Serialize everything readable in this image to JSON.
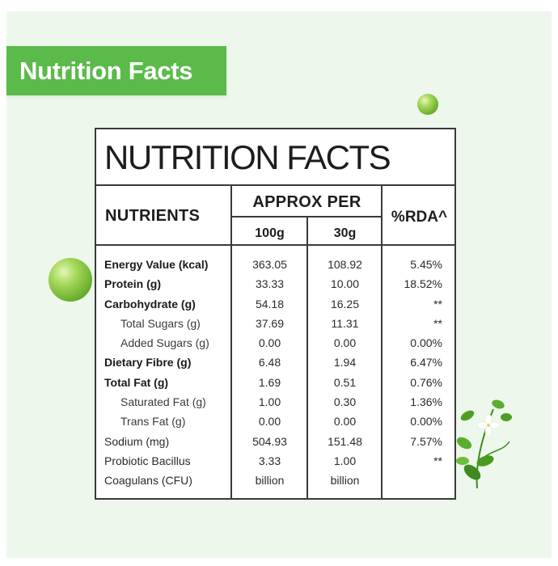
{
  "banner": {
    "title": "Nutrition Facts"
  },
  "card": {
    "title": "NUTRITION FACTS",
    "headers": {
      "nutrients": "NUTRIENTS",
      "approx_per": "APPROX PER",
      "col_100g": "100g",
      "col_30g": "30g",
      "rda": "%RDA^"
    },
    "rows": [
      {
        "name": "Energy Value (kcal)",
        "v100": "363.05",
        "v30": "108.92",
        "rda": "5.45%",
        "bold": true,
        "indent": false
      },
      {
        "name": "Protein (g)",
        "v100": "33.33",
        "v30": "10.00",
        "rda": "18.52%",
        "bold": true,
        "indent": false
      },
      {
        "name": "Carbohydrate (g)",
        "v100": "54.18",
        "v30": "16.25",
        "rda": "**",
        "bold": true,
        "indent": false
      },
      {
        "name": "Total Sugars (g)",
        "v100": "37.69",
        "v30": "11.31",
        "rda": "**",
        "bold": false,
        "indent": true
      },
      {
        "name": "Added Sugars (g)",
        "v100": "0.00",
        "v30": "0.00",
        "rda": "0.00%",
        "bold": false,
        "indent": true
      },
      {
        "name": "Dietary Fibre (g)",
        "v100": "6.48",
        "v30": "1.94",
        "rda": "6.47%",
        "bold": true,
        "indent": false
      },
      {
        "name": "Total Fat (g)",
        "v100": "1.69",
        "v30": "0.51",
        "rda": "0.76%",
        "bold": true,
        "indent": false
      },
      {
        "name": "Saturated Fat (g)",
        "v100": "1.00",
        "v30": "0.30",
        "rda": "1.36%",
        "bold": false,
        "indent": true
      },
      {
        "name": "Trans Fat (g)",
        "v100": "0.00",
        "v30": "0.00",
        "rda": "0.00%",
        "bold": false,
        "indent": true
      },
      {
        "name": "Sodium (mg)",
        "v100": "504.93",
        "v30": "151.48",
        "rda": "7.57%",
        "bold": false,
        "indent": false
      },
      {
        "name": "Probiotic Bacillus",
        "v100": "3.33",
        "v30": "1.00",
        "rda": "**",
        "bold": false,
        "indent": false
      },
      {
        "name": "Coagulans (CFU)",
        "v100": "billion",
        "v30": "billion",
        "rda": "",
        "bold": false,
        "indent": false
      }
    ]
  },
  "colors": {
    "banner_green": "#5bbb4a",
    "panel_bg": "#eef7ec",
    "border": "#3a3a3a"
  }
}
